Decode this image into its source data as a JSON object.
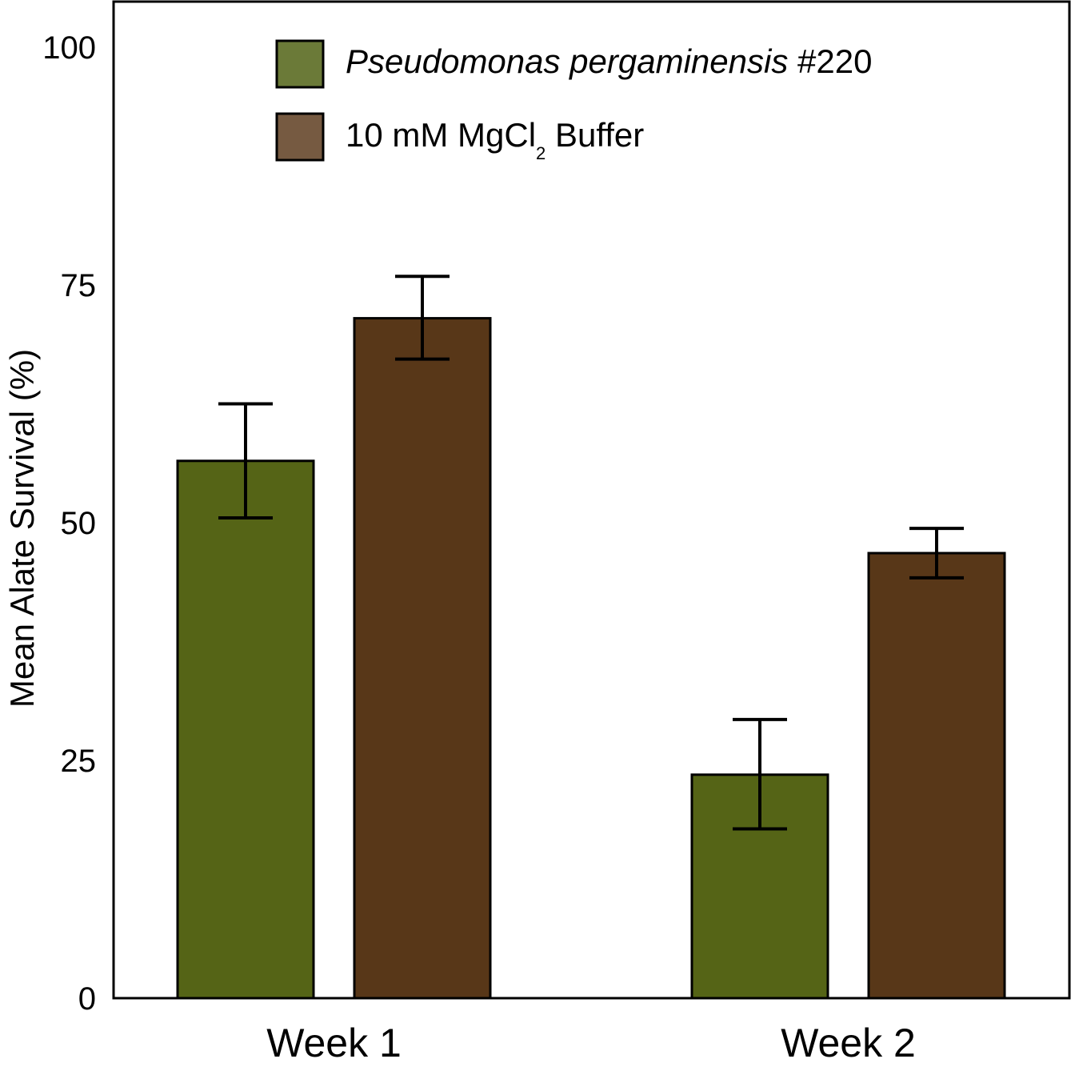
{
  "chart_data": {
    "type": "bar",
    "categories": [
      "Week 1",
      "Week 2"
    ],
    "series": [
      {
        "name": "Pseudomonas pergaminensis #220",
        "name_italic": "Pseudomonas pergaminensis",
        "name_plain": " #220",
        "values": [
          56.5,
          23.5
        ],
        "error": [
          [
            50.5,
            62.5
          ],
          [
            17.8,
            29.3
          ]
        ],
        "color": "#556416",
        "legend_color": "#6b7a38"
      },
      {
        "name": "10 mM MgCl2 Buffer",
        "name_main": "10 mM MgCl",
        "name_sub": "2",
        "name_tail": " Buffer",
        "values": [
          71.5,
          46.8
        ],
        "error": [
          [
            67.2,
            75.9
          ],
          [
            44.2,
            49.4
          ]
        ],
        "color": "#583718",
        "legend_color": "#765a41"
      }
    ],
    "title": "",
    "xlabel": "",
    "ylabel": "Mean Alate Survival (%)",
    "ylim": [
      0,
      105
    ],
    "yticks": [
      "0",
      "25",
      "50",
      "75",
      "100"
    ],
    "ytick_values": [
      0,
      25,
      50,
      75,
      100
    ],
    "grid": false,
    "legend_placement": "top"
  }
}
